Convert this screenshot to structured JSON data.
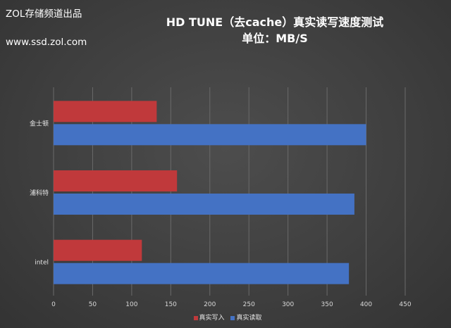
{
  "watermark": {
    "line1": "ZOL存储频道出品",
    "line2": "www.ssd.zol.com"
  },
  "chart_data": {
    "type": "bar",
    "orientation": "horizontal",
    "title": "HD TUNE（去cache）真实读写速度测试",
    "subtitle": "单位：MB/S",
    "categories": [
      "金士顿",
      "浦科特",
      "intel"
    ],
    "series": [
      {
        "name": "真实写入",
        "values": [
          132,
          158,
          113
        ],
        "color": "#c0393b"
      },
      {
        "name": "真实读取",
        "values": [
          400,
          385,
          378
        ],
        "color": "#4472c4"
      }
    ],
    "xlim": [
      0,
      450
    ],
    "xticks": [
      0,
      50,
      100,
      150,
      200,
      250,
      300,
      350,
      400,
      450
    ],
    "grid": true,
    "legend": "bottom"
  }
}
